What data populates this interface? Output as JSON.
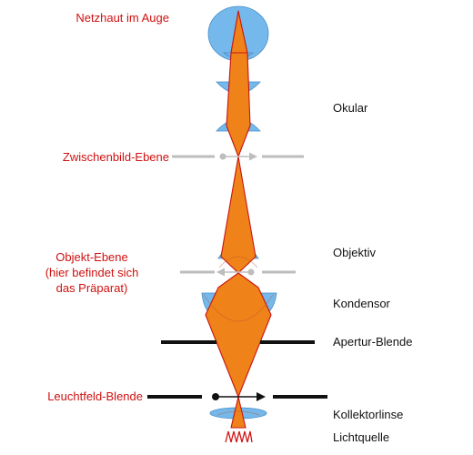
{
  "left_labels": {
    "retina": "Netzhaut im Auge",
    "intermediate_image_plane": "Zwischenbild-Ebene",
    "object_plane_line1": "Objekt-Ebene",
    "object_plane_line2": "(hier befindet sich",
    "object_plane_line3": "das Präparat)",
    "field_diaphragm": "Leuchtfeld-Blende"
  },
  "right_labels": {
    "eyepiece": "Okular",
    "objective": "Objektiv",
    "condenser": "Kondensor",
    "aperture_diaphragm": "Apertur-Blende",
    "collector_lens": "Kollektorlinse",
    "light_source": "Lichtquelle"
  },
  "colors": {
    "left_label_color": "#d01010",
    "right_label_color": "#111111",
    "beam_fill": "#ef8219",
    "beam_outline": "#c81414",
    "lens_fill": "#74b8ec",
    "image_plane_color": "#bdbdbd",
    "diaphragm_color": "#111111"
  }
}
